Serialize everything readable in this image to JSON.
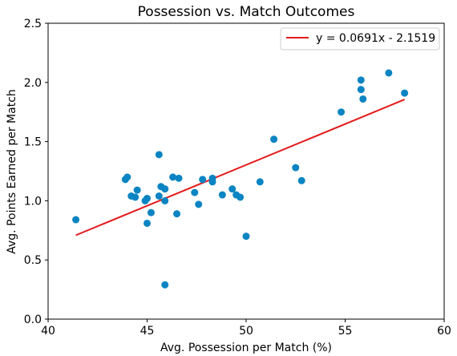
{
  "chart_data": {
    "type": "scatter",
    "title": "Possession vs. Match Outcomes",
    "xlabel": "Avg. Possession per Match (%)",
    "ylabel": "Avg. Points Earned per Match",
    "xlim": [
      40,
      60
    ],
    "ylim": [
      0,
      2.5
    ],
    "xticks": [
      40,
      45,
      50,
      55,
      60
    ],
    "xtick_labels": [
      "40",
      "45",
      "50",
      "55",
      "60"
    ],
    "yticks": [
      0.0,
      0.5,
      1.0,
      1.5,
      2.0,
      2.5
    ],
    "ytick_labels": [
      "0.0",
      "0.5",
      "1.0",
      "1.5",
      "2.0",
      "2.5"
    ],
    "grid": false,
    "legend_position": "top-right",
    "points_color": "#0a84c2",
    "fit_color": "#e41a1c",
    "fit_line": {
      "label": "y = 0.0691x - 2.1519",
      "slope": 0.0691,
      "intercept": -2.1519,
      "x_range": [
        41.4,
        58.0
      ]
    },
    "x": [
      41.4,
      43.9,
      44.0,
      44.2,
      44.4,
      44.5,
      44.9,
      45.0,
      45.0,
      45.2,
      45.6,
      45.6,
      45.7,
      45.9,
      45.9,
      45.9,
      46.3,
      46.5,
      46.6,
      47.4,
      47.6,
      47.8,
      48.3,
      48.3,
      48.8,
      49.3,
      49.5,
      49.7,
      50.0,
      50.7,
      51.4,
      52.5,
      52.8,
      54.8,
      55.8,
      55.8,
      55.9,
      57.2,
      58.0
    ],
    "y": [
      0.84,
      1.18,
      1.2,
      1.04,
      1.03,
      1.09,
      1.0,
      0.81,
      1.02,
      0.9,
      1.04,
      1.39,
      1.12,
      1.1,
      1.0,
      0.29,
      1.2,
      0.89,
      1.19,
      1.07,
      0.97,
      1.18,
      1.19,
      1.16,
      1.05,
      1.1,
      1.05,
      1.03,
      0.7,
      1.16,
      1.52,
      1.28,
      1.17,
      1.75,
      2.02,
      1.94,
      1.86,
      2.08,
      1.91
    ]
  }
}
